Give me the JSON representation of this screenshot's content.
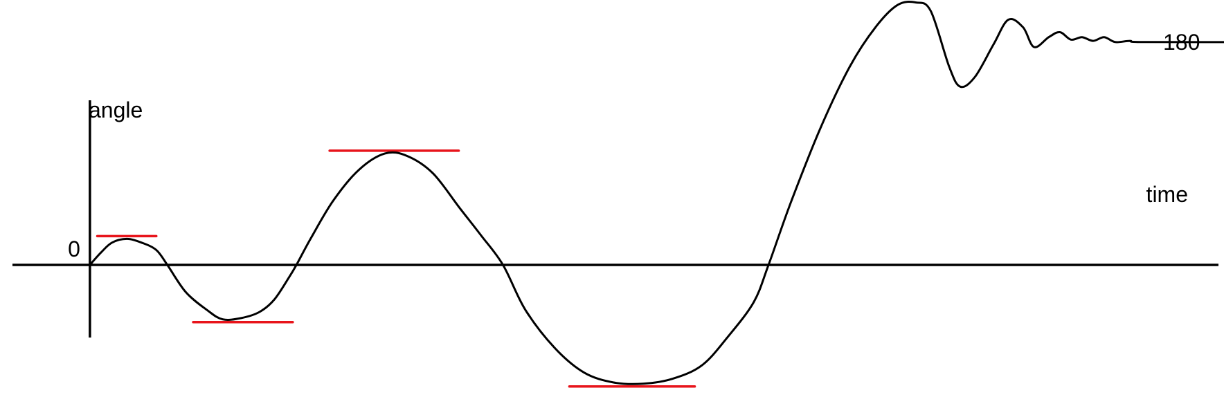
{
  "chart_data": {
    "type": "line",
    "x_axis_label": "time",
    "y_axis_label": "angle",
    "y_ticks": [
      {
        "label": "0",
        "value": 0
      },
      {
        "label": "180",
        "value": 180
      }
    ],
    "series": [
      {
        "line_color": "#000000",
        "description_of_shape": "angle oscillates about 0 with growing amplitude, then rises and settles at 180 with damped oscillation",
        "points": [
          [
            0,
            0
          ],
          [
            0.3,
            10
          ],
          [
            0.6,
            18
          ],
          [
            1.0,
            21
          ],
          [
            1.4,
            18
          ],
          [
            1.8,
            12
          ],
          [
            2.1,
            0
          ],
          [
            2.6,
            -22
          ],
          [
            3.2,
            -37
          ],
          [
            3.6,
            -44
          ],
          [
            4.1,
            -43
          ],
          [
            4.6,
            -38
          ],
          [
            5.0,
            -28
          ],
          [
            5.4,
            -10
          ],
          [
            5.6,
            0
          ],
          [
            6.0,
            22
          ],
          [
            6.6,
            52
          ],
          [
            7.3,
            77
          ],
          [
            8.0,
            90
          ],
          [
            8.6,
            88
          ],
          [
            9.3,
            74
          ],
          [
            10.0,
            47
          ],
          [
            10.6,
            24
          ],
          [
            11.2,
            0
          ],
          [
            11.8,
            -36
          ],
          [
            12.6,
            -67
          ],
          [
            13.4,
            -87
          ],
          [
            14.2,
            -95
          ],
          [
            15.0,
            -96
          ],
          [
            15.8,
            -92
          ],
          [
            16.6,
            -81
          ],
          [
            17.3,
            -58
          ],
          [
            18.0,
            -30
          ],
          [
            18.4,
            0
          ],
          [
            19.0,
            50
          ],
          [
            19.8,
            110
          ],
          [
            20.6,
            160
          ],
          [
            21.3,
            192
          ],
          [
            21.9,
            210
          ],
          [
            22.4,
            212
          ],
          [
            22.8,
            205
          ],
          [
            23.3,
            160
          ],
          [
            23.6,
            144
          ],
          [
            24.0,
            152
          ],
          [
            24.5,
            178
          ],
          [
            24.9,
            198
          ],
          [
            25.3,
            192
          ],
          [
            25.6,
            176
          ],
          [
            26.0,
            184
          ],
          [
            26.3,
            188
          ],
          [
            26.6,
            182
          ],
          [
            26.9,
            184
          ],
          [
            27.2,
            181
          ],
          [
            27.5,
            184
          ],
          [
            27.8,
            180
          ],
          [
            28.2,
            181
          ],
          [
            28.6,
            180
          ],
          [
            32.0,
            180
          ]
        ]
      }
    ],
    "peak_markers": [
      {
        "color": "#e8141b",
        "value": 21,
        "x_range": [
          0.2,
          1.8
        ]
      },
      {
        "color": "#e8141b",
        "value": -44,
        "x_range": [
          2.8,
          5.5
        ]
      },
      {
        "color": "#e8141b",
        "value": 90,
        "x_range": [
          6.5,
          10.0
        ]
      },
      {
        "color": "#e8141b",
        "value": -96,
        "x_range": [
          13.0,
          16.4
        ]
      }
    ],
    "x_range": [
      -2.1,
      30.6
    ],
    "y_range": [
      -114,
      214
    ],
    "grid": false,
    "legend": "none"
  }
}
